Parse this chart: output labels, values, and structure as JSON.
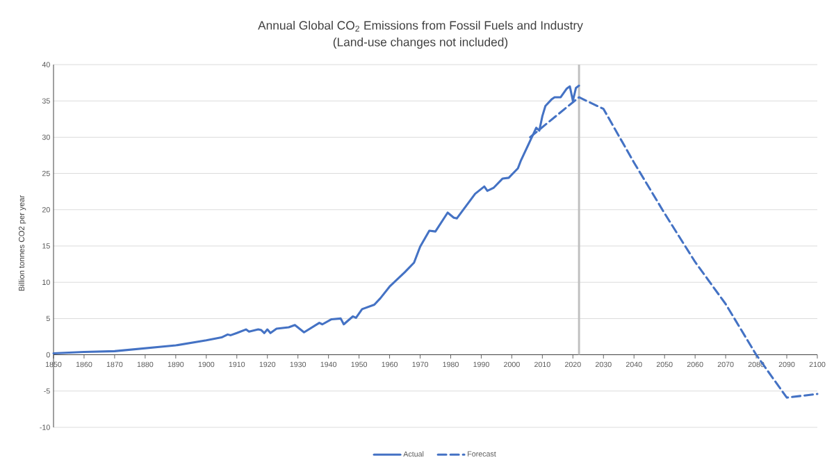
{
  "chart_data": {
    "type": "line",
    "title": "Annual Global CO$_{2}$ Emissions from Fossil Fuels and Industry",
    "subtitle": "(Land-use changes not included)",
    "ylabel": "Billion tonnes CO2 per year",
    "xlim": [
      1850,
      2100
    ],
    "xticks": [
      1850,
      1860,
      1870,
      1880,
      1890,
      1900,
      1910,
      1920,
      1930,
      1940,
      1950,
      1960,
      1970,
      1980,
      1990,
      2000,
      2010,
      2020,
      2030,
      2040,
      2050,
      2060,
      2070,
      2080,
      2090,
      2100
    ],
    "ylim": [
      -10,
      40
    ],
    "yticks": [
      -10,
      -5,
      0,
      5,
      10,
      15,
      20,
      25,
      30,
      35,
      40
    ],
    "grid": "y",
    "legend": "bottom",
    "ref_lines": [
      {
        "axis": "x",
        "value": 2022,
        "color": "#bfbfbf"
      }
    ],
    "series": [
      {
        "name": "Actual",
        "color": "#4472c4",
        "line_style": "solid",
        "x": [
          1850,
          1860,
          1870,
          1880,
          1890,
          1900,
          1905,
          1907,
          1908,
          1910,
          1913,
          1914,
          1917,
          1918,
          1919,
          1920,
          1921,
          1923,
          1927,
          1929,
          1932,
          1937,
          1938,
          1941,
          1944,
          1945,
          1948,
          1949,
          1951,
          1955,
          1957,
          1960,
          1965,
          1968,
          1970,
          1973,
          1975,
          1979,
          1981,
          1982,
          1985,
          1988,
          1991,
          1992,
          1994,
          1997,
          1999,
          2002,
          2003,
          2006,
          2008,
          2009,
          2010,
          2011,
          2013,
          2014,
          2016,
          2017,
          2018,
          2019,
          2020,
          2021,
          2022
        ],
        "values": [
          0.2,
          0.4,
          0.5,
          0.9,
          1.3,
          2.0,
          2.4,
          2.8,
          2.7,
          3.0,
          3.5,
          3.2,
          3.5,
          3.4,
          3.0,
          3.5,
          3.0,
          3.6,
          3.8,
          4.1,
          3.1,
          4.4,
          4.2,
          4.9,
          5.0,
          4.2,
          5.3,
          5.1,
          6.3,
          6.9,
          7.8,
          9.4,
          11.4,
          12.7,
          14.9,
          17.1,
          17.0,
          19.6,
          18.9,
          18.8,
          20.5,
          22.2,
          23.2,
          22.6,
          23.0,
          24.3,
          24.4,
          25.7,
          26.8,
          29.5,
          31.3,
          30.9,
          32.9,
          34.3,
          35.2,
          35.5,
          35.5,
          36.1,
          36.7,
          37.0,
          35.0,
          36.8,
          37.1
        ]
      },
      {
        "name": "Forecast",
        "color": "#4472c4",
        "line_style": "dashed",
        "x": [
          2006,
          2022,
          2030,
          2040,
          2050,
          2060,
          2070,
          2080,
          2090,
          2100
        ],
        "values": [
          30.0,
          35.5,
          33.9,
          26.5,
          19.5,
          12.8,
          7.0,
          0.0,
          -5.9,
          -5.4
        ]
      }
    ]
  }
}
